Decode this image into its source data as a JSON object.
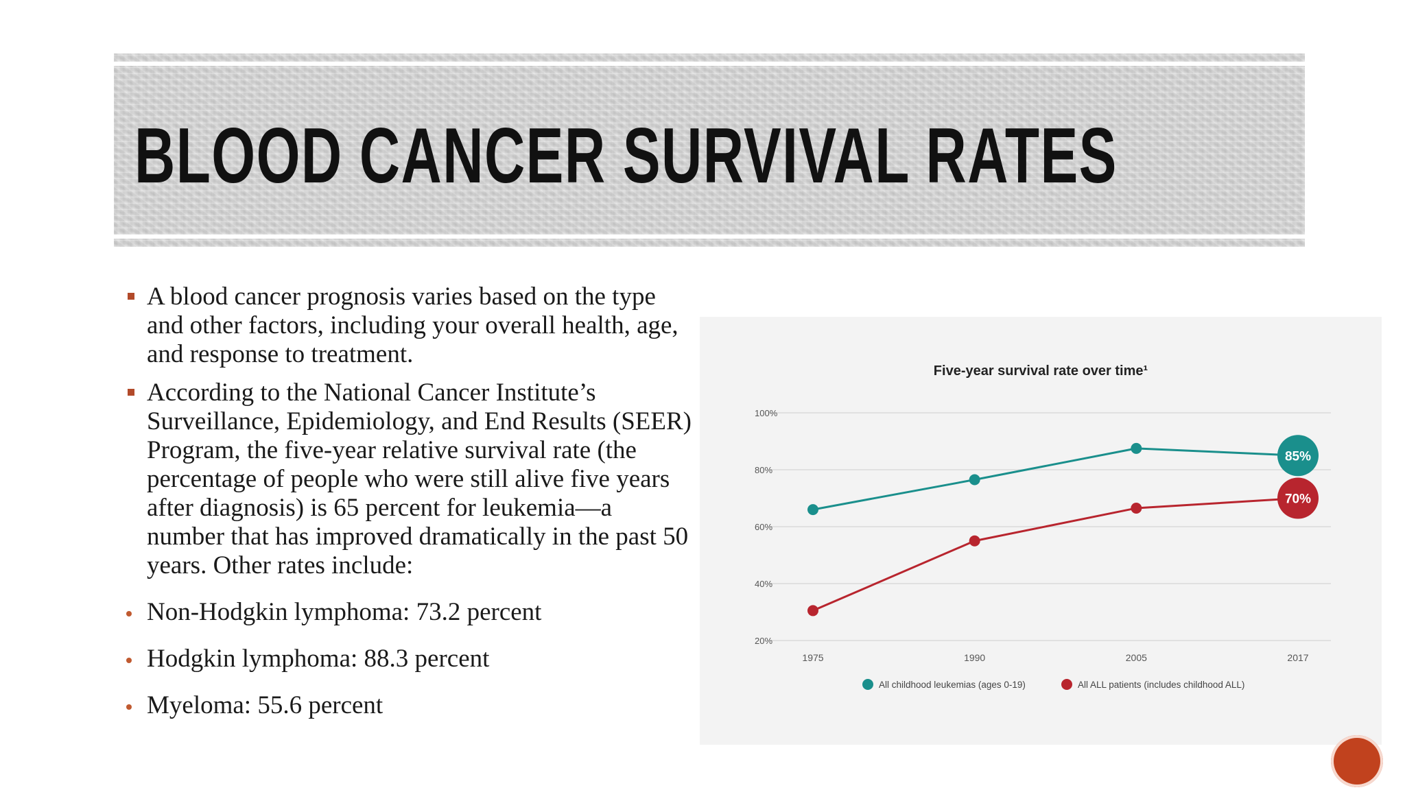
{
  "slide": {
    "title": "BLOOD CANCER SURVIVAL RATES",
    "bullets": [
      {
        "style": "square",
        "text": "A blood cancer prognosis varies based on the type and other factors, including your overall health, age, and response to treatment."
      },
      {
        "style": "square",
        "text": "According to the National Cancer Institute’s Surveillance, Epidemiology, and End Results (SEER) Program, the five-year relative survival rate (the percentage of people who were still alive five years after diagnosis) is 65 percent for leukemia—a number that has improved dramatically in the past 50 years. Other rates include:"
      },
      {
        "style": "dot",
        "text": "Non-Hodgkin lymphoma: 73.2 percent"
      },
      {
        "style": "dot",
        "text": "Hodgkin lymphoma: 88.3 percent"
      },
      {
        "style": "dot",
        "text": "Myeloma: 55.6 percent"
      }
    ]
  },
  "chart_data": {
    "type": "line",
    "title": "Five-year survival rate over time¹",
    "xlabel": "",
    "ylabel": "",
    "categories": [
      "1975",
      "1990",
      "2005",
      "2017"
    ],
    "ylim": [
      20,
      100
    ],
    "yticks": [
      100,
      80,
      60,
      40,
      20
    ],
    "ytick_labels": [
      "100%",
      "80%",
      "60%",
      "40%",
      "20%"
    ],
    "grid": true,
    "legend_position": "bottom",
    "series": [
      {
        "name": "All childhood leukemias (ages 0-19)",
        "color": "#1a8f8c",
        "values": [
          66,
          76.5,
          87.5,
          85
        ],
        "end_label": "85%"
      },
      {
        "name": "All ALL patients (includes childhood ALL)",
        "color": "#b8252e",
        "values": [
          30.5,
          55,
          66.5,
          70
        ],
        "end_label": "70%"
      }
    ]
  }
}
